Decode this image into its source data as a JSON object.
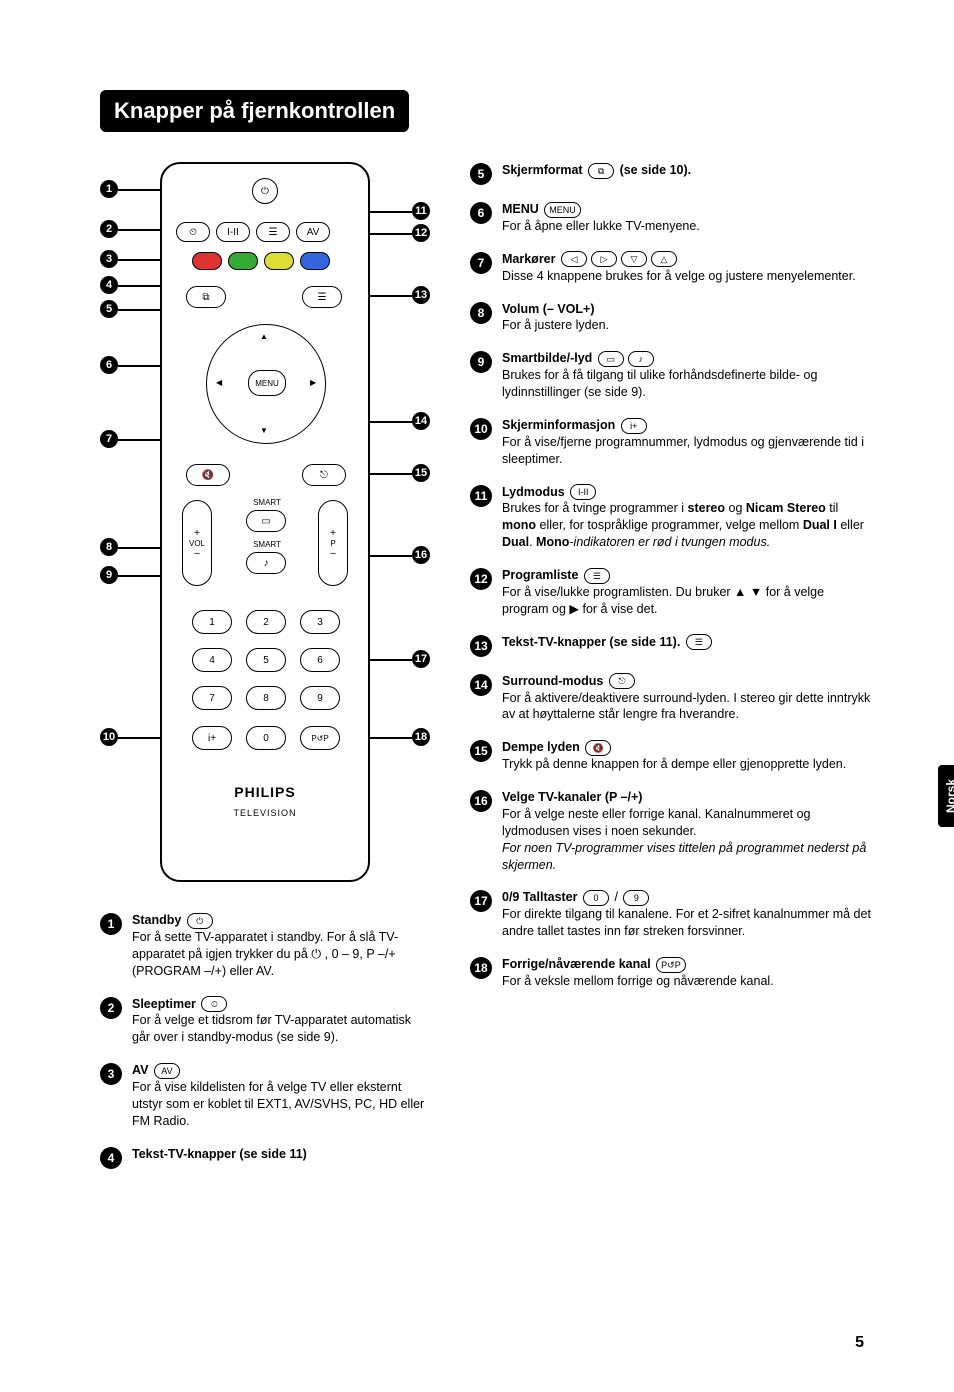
{
  "page": {
    "title": "Knapper på fjernkontrollen",
    "page_number": "5",
    "side_tab": "Norsk"
  },
  "remote": {
    "brand": "PHILIPS",
    "subbrand": "TELEVISION",
    "labels": {
      "menu": "MENU",
      "smart": "SMART",
      "vol": "VOL",
      "p": "P"
    }
  },
  "left_items": [
    {
      "num": "1",
      "title": "Standby",
      "icon": "⏻",
      "desc": "For å sette TV-apparatet i standby. For å slå TV-apparatet på igjen trykker du på ⏻ , 0 – 9, P –/+ (PROGRAM –/+) eller AV."
    },
    {
      "num": "2",
      "title": "Sleeptimer",
      "icon": "⏲",
      "desc": "For å velge et tidsrom før TV-apparatet automatisk går over i standby-modus (se side 9)."
    },
    {
      "num": "3",
      "title": "AV",
      "icon": "AV",
      "desc": "For å vise kildelisten for å velge TV eller eksternt utstyr som er koblet til EXT1, AV/SVHS, PC, HD eller FM Radio."
    },
    {
      "num": "4",
      "title": "Tekst-TV-knapper (se side 11)",
      "icon": "",
      "desc": ""
    }
  ],
  "right_items": [
    {
      "num": "5",
      "title": "Skjermformat",
      "post": "(se side 10).",
      "icon": "⧉",
      "desc": ""
    },
    {
      "num": "6",
      "title": "MENU",
      "icon": "MENU",
      "desc": "For å åpne eller lukke TV-menyene."
    },
    {
      "num": "7",
      "title": "Markører",
      "icon": "◁ ▷ ▽ △",
      "desc": "Disse 4 knappene brukes for å velge og justere menyelementer."
    },
    {
      "num": "8",
      "title": "Volum (– VOL+)",
      "icon": "",
      "desc": "For å justere lyden."
    },
    {
      "num": "9",
      "title": "Smartbilde/-lyd",
      "icon": "▭ ♪",
      "desc": "Brukes for å få tilgang til ulike forhåndsdefinerte bilde- og lydinnstillinger (se side 9)."
    },
    {
      "num": "10",
      "title": "Skjerminformasjon",
      "icon": "i+",
      "desc": "For å vise/fjerne programnummer, lydmodus og gjenværende tid i sleeptimer."
    },
    {
      "num": "11",
      "title": "Lydmodus",
      "icon": "I-II",
      "desc_html": "Brukes for å tvinge programmer i <b>stereo</b> og <b>Nicam Stereo</b> til <b>mono</b> eller, for tospråklige programmer, velge mellom <b>Dual I</b> eller <b>Dual</b>. <b>Mono</b><i>-indikatoren er rød i tvungen modus.</i>"
    },
    {
      "num": "12",
      "title": "Programliste",
      "icon": "☰",
      "desc": "For å vise/lukke programlisten. Du bruker ▲ ▼ for å velge program og ▶ for å vise det."
    },
    {
      "num": "13",
      "title": "Tekst-TV-knapper (se side 11).",
      "icon": "☰",
      "desc": ""
    },
    {
      "num": "14",
      "title": "Surround-modus",
      "icon": "⎋",
      "desc": "For å aktivere/deaktivere surround-lyden. I stereo gir dette inntrykk av at høyttalerne står lengre fra hverandre."
    },
    {
      "num": "15",
      "title": "Dempe lyden",
      "icon": "🔇",
      "desc": "Trykk på denne knappen for å dempe eller gjenopprette lyden."
    },
    {
      "num": "16",
      "title": "Velge TV-kanaler (P –/+)",
      "icon": "",
      "desc": "For å velge neste eller forrige kanal. Kanalnummeret og lydmodusen vises i noen sekunder.",
      "note": "For noen TV-programmer vises tittelen på programmet nederst på skjermen."
    },
    {
      "num": "17",
      "title": "0/9 Talltaster",
      "icon": "0 / 9",
      "desc": "For direkte tilgang til kanalene. For et 2-sifret kanalnummer må det andre tallet tastes inn før streken forsvinner."
    },
    {
      "num": "18",
      "title": "Forrige/nåværende kanal",
      "icon": "P↺P",
      "desc": "For å veksle mellom forrige og nåværende kanal."
    }
  ]
}
